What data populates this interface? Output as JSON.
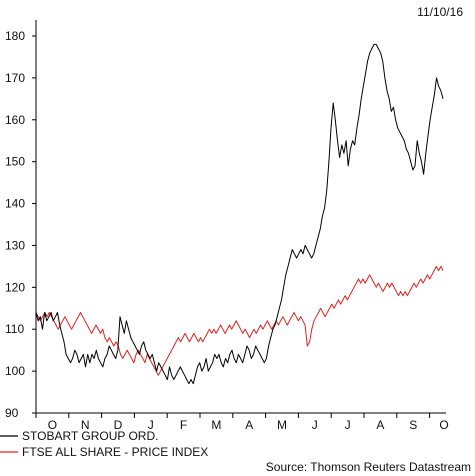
{
  "date_stamp": "11/10/16",
  "source_text": "Source: Thomson Reuters Datastream",
  "chart_data": {
    "type": "line",
    "ylim": [
      90,
      180
    ],
    "y_ticks": [
      90,
      100,
      110,
      120,
      130,
      140,
      150,
      160,
      170,
      180
    ],
    "x_ticks": [
      "O",
      "N",
      "D",
      "J",
      "F",
      "M",
      "A",
      "M",
      "J",
      "J",
      "A",
      "S",
      "O"
    ],
    "grid": false,
    "legend_placement": "bottom-left",
    "series": [
      {
        "name": "STOBART GROUP ORD.",
        "color": "#000000",
        "values": [
          114,
          112,
          113,
          110,
          114,
          112,
          113,
          114,
          112,
          113,
          114,
          111,
          109,
          107,
          104,
          103,
          102,
          103,
          105,
          104,
          102,
          103,
          104,
          101,
          104,
          102,
          104,
          103,
          105,
          103,
          102,
          101,
          103,
          104,
          106,
          105,
          104,
          103,
          105,
          113,
          111,
          109,
          112,
          110,
          108,
          107,
          106,
          105,
          104,
          106,
          107,
          105,
          104,
          103,
          104,
          102,
          100,
          102,
          101,
          100,
          99,
          98,
          101,
          99,
          98,
          99,
          100,
          101,
          100,
          99,
          98,
          97,
          98,
          97,
          99,
          101,
          102,
          100,
          101,
          103,
          100,
          101,
          102,
          104,
          103,
          104,
          102,
          101,
          103,
          102,
          104,
          105,
          103,
          102,
          104,
          103,
          102,
          104,
          106,
          105,
          103,
          104,
          106,
          105,
          104,
          103,
          102,
          103,
          106,
          108,
          110,
          111,
          113,
          115,
          117,
          120,
          123,
          125,
          127,
          129,
          128,
          127,
          128,
          129,
          128,
          130,
          129,
          128,
          127,
          128,
          130,
          132,
          134,
          137,
          139,
          143,
          150,
          158,
          164,
          160,
          155,
          151,
          154,
          152,
          155,
          149,
          153,
          155,
          154,
          158,
          161,
          165,
          168,
          171,
          174,
          176,
          177,
          178,
          178,
          177,
          176,
          174,
          170,
          167,
          165,
          162,
          163,
          160,
          158,
          157,
          156,
          155,
          153,
          152,
          150,
          148,
          149,
          155,
          152,
          150,
          147,
          152,
          156,
          160,
          163,
          166,
          170,
          168,
          167,
          165
        ]
      },
      {
        "name": "FTSE ALL SHARE - PRICE INDEX",
        "color": "#e0201c",
        "values": [
          114,
          113,
          112,
          113,
          114,
          113,
          114,
          113,
          112,
          111,
          110,
          111,
          112,
          113,
          112,
          111,
          110,
          111,
          112,
          113,
          114,
          113,
          112,
          111,
          110,
          109,
          110,
          111,
          110,
          109,
          110,
          108,
          107,
          108,
          107,
          106,
          107,
          106,
          104,
          103,
          104,
          105,
          104,
          103,
          102,
          104,
          105,
          104,
          103,
          102,
          104,
          103,
          102,
          101,
          100,
          99,
          100,
          101,
          102,
          103,
          104,
          105,
          106,
          107,
          108,
          107,
          108,
          109,
          108,
          107,
          108,
          109,
          108,
          107,
          108,
          107,
          108,
          109,
          110,
          109,
          110,
          109,
          110,
          111,
          110,
          109,
          110,
          111,
          110,
          111,
          112,
          111,
          110,
          109,
          110,
          109,
          108,
          109,
          110,
          109,
          110,
          111,
          110,
          111,
          112,
          111,
          110,
          111,
          112,
          111,
          112,
          113,
          112,
          111,
          112,
          113,
          114,
          113,
          112,
          113,
          112,
          111,
          106,
          107,
          110,
          112,
          113,
          114,
          115,
          114,
          113,
          114,
          115,
          116,
          115,
          116,
          117,
          116,
          117,
          118,
          117,
          118,
          119,
          120,
          121,
          122,
          121,
          122,
          121,
          122,
          123,
          122,
          121,
          120,
          121,
          120,
          119,
          120,
          121,
          120,
          121,
          120,
          119,
          118,
          119,
          118,
          119,
          118,
          119,
          120,
          121,
          120,
          121,
          122,
          121,
          122,
          123,
          122,
          123,
          124,
          125,
          124,
          125,
          124
        ]
      }
    ]
  }
}
